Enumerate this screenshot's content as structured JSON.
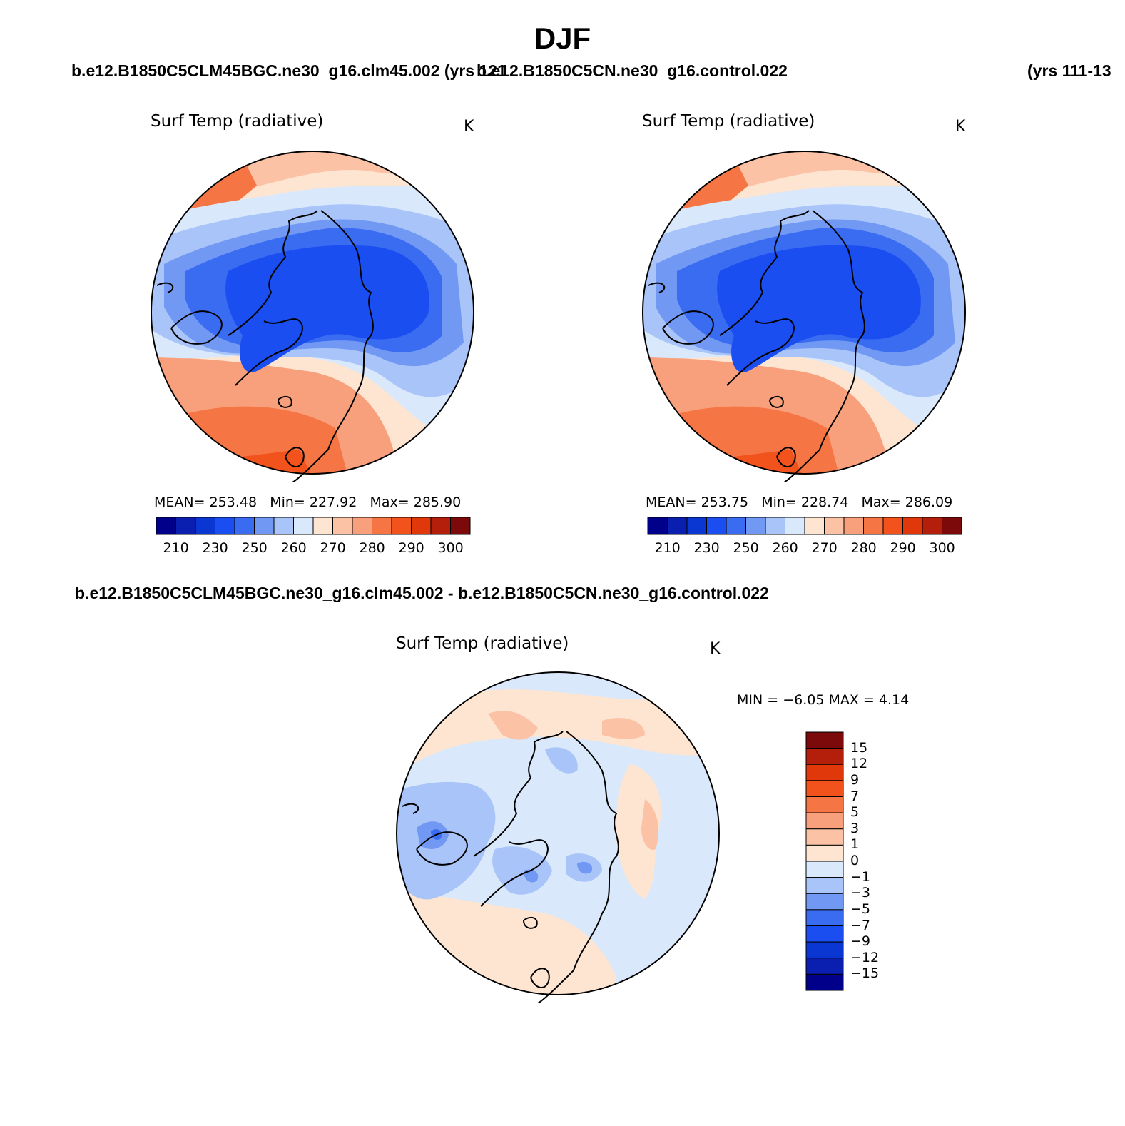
{
  "title": "DJF",
  "case_left": "b.e12.B1850C5CLM45BGC.ne30_g16.clm45.002 (yrs 121",
  "case_right": "b.e12.B1850C5CN.ne30_g16.control.022",
  "years_right": "(yrs 111-13",
  "case_diff": "b.e12.B1850C5CLM45BGC.ne30_g16.clm45.002 - b.e12.B1850C5CN.ne30_g16.control.022",
  "panels": [
    {
      "variable": "Surf Temp (radiative)",
      "units": "K",
      "stats": {
        "mean_label": "MEAN=",
        "mean": "253.48",
        "min_label": "Min=",
        "min": "227.92",
        "max_label": "Max=",
        "max": "285.90"
      }
    },
    {
      "variable": "Surf Temp (radiative)",
      "units": "K",
      "stats": {
        "mean_label": "MEAN=",
        "mean": "253.75",
        "min_label": "Min=",
        "min": "228.74",
        "max_label": "Max=",
        "max": "286.09"
      }
    }
  ],
  "diff_panel": {
    "variable": "Surf Temp (radiative)",
    "units": "K",
    "stats_text": "MIN =   −6.05 MAX =    4.14"
  },
  "colorbar_abs": {
    "colors": [
      "#00008b",
      "#0a1fb0",
      "#0a37d2",
      "#1b4ef0",
      "#3a6cf2",
      "#7199f4",
      "#a9c4f8",
      "#d9e8fb",
      "#fde5d2",
      "#fcc2a6",
      "#f8a07c",
      "#f57545",
      "#f2521c",
      "#e0370b",
      "#b41f0b",
      "#7c0a0a"
    ],
    "tick_labels": [
      "210",
      "230",
      "250",
      "260",
      "270",
      "280",
      "290",
      "300"
    ]
  },
  "colorbar_diff": {
    "colors": [
      "#7c0a0a",
      "#b41f0b",
      "#e0370b",
      "#f2521c",
      "#f57545",
      "#f8a07c",
      "#fcc2a6",
      "#fde5d2",
      "#d9e8fb",
      "#a9c4f8",
      "#7199f4",
      "#3a6cf2",
      "#1b4ef0",
      "#0a37d2",
      "#0a1fb0",
      "#00008b"
    ],
    "tick_labels": [
      "15",
      "12",
      "9",
      "7",
      "5",
      "3",
      "1",
      "0",
      "−1",
      "−3",
      "−5",
      "−7",
      "−9",
      "−12",
      "−15"
    ]
  },
  "map_colors": {
    "cold_core": "#1b4ef0",
    "cold_mid": "#3a6cf2",
    "cold_light": "#7199f4",
    "cool": "#a9c4f8",
    "pale_blue": "#d9e8fb",
    "pale_orange": "#fde5d2",
    "warm_light": "#fcc2a6",
    "warm": "#f8a07c",
    "warm_strong": "#f57545",
    "hot": "#f2521c"
  }
}
